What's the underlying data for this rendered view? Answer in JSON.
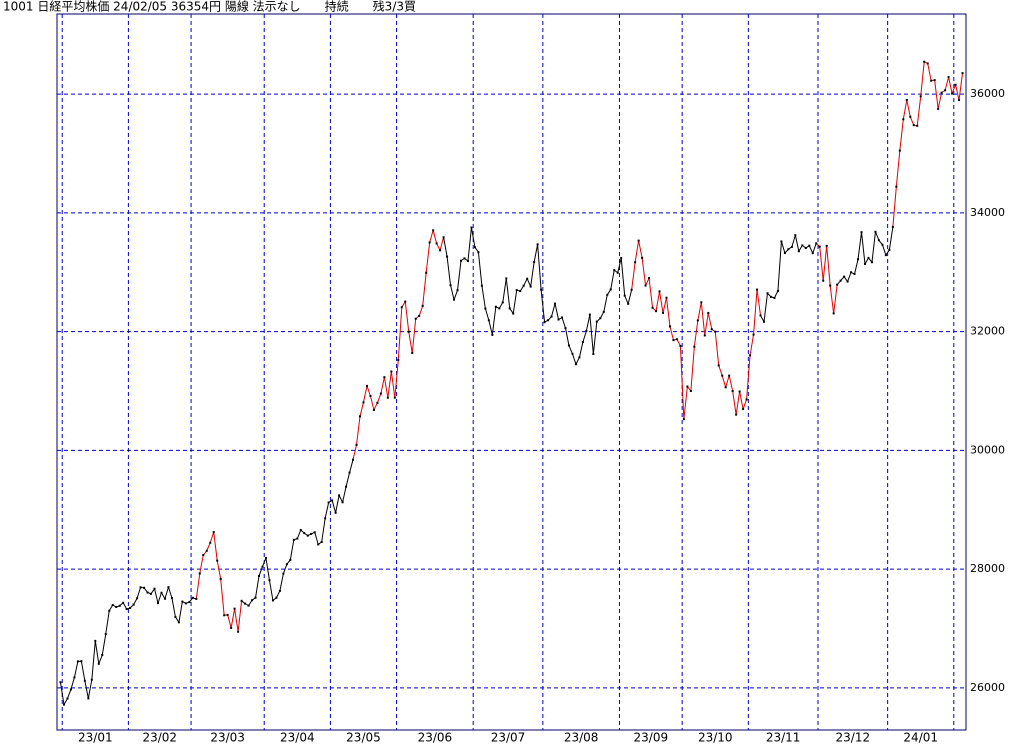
{
  "chart_data": {
    "type": "line",
    "title": "1001 日経平均株価 24/02/05 36354円 陽線 法示なし　　持続　　残3/3買",
    "values": [
      26094,
      25717,
      25820,
      25974,
      26175,
      26446,
      26449,
      26119,
      25822,
      26138,
      26791,
      26405,
      26553,
      26906,
      27299,
      27395,
      27362,
      27382,
      27433,
      27327,
      27346,
      27402,
      27509,
      27693,
      27685,
      27606,
      27584,
      27670,
      27427,
      27602,
      27501,
      27696,
      27513,
      27194,
      27104,
      27453,
      27423,
      27445,
      27516,
      27498,
      27927,
      28237,
      28309,
      28444,
      28623,
      28143,
      27832,
      27222,
      27229,
      27010,
      27334,
      26945,
      27466,
      27419,
      27385,
      27476,
      27518,
      27883,
      28041,
      28188,
      27813,
      27472,
      27518,
      27633,
      27923,
      28082,
      28156,
      28493,
      28514,
      28658,
      28606,
      28564,
      28593,
      28620,
      28416,
      28457,
      28856,
      29123,
      29157,
      28949,
      29242,
      29126,
      29388,
      29626,
      29843,
      30093,
      30573,
      30808,
      31086,
      30916,
      30681,
      30801,
      30957,
      31233,
      30887,
      31328,
      30888,
      31524,
      32411,
      32506,
      31998,
      31641,
      32217,
      32265,
      32434,
      32992,
      33502,
      33706,
      33485,
      33370,
      33589,
      33264,
      32781,
      32538,
      32698,
      33194,
      33234,
      33189,
      33753,
      33422,
      33338,
      32773,
      32388,
      32190,
      31945,
      32419,
      32391,
      32493,
      32896,
      32391,
      32304,
      32700,
      32682,
      32774,
      32891,
      32759,
      33172,
      33470,
      32707,
      32159,
      32192,
      32254,
      32473,
      32204,
      32238,
      32059,
      31766,
      31626,
      31451,
      31566,
      31825,
      32010,
      32287,
      31624,
      32169,
      32226,
      32333,
      32620,
      32711,
      33036,
      32992,
      33241,
      32606,
      32468,
      32706,
      33168,
      33533,
      33242,
      32776,
      32902,
      32402,
      32345,
      32678,
      32316,
      32571,
      32088,
      31857,
      31872,
      31759,
      30526,
      31075,
      31000,
      31746,
      32189,
      32494,
      31936,
      32315,
      32040,
      31999,
      31430,
      31259,
      31062,
      31259,
      30999,
      30602,
      30992,
      30696,
      30858,
      31601,
      31950,
      32708,
      32272,
      32166,
      32646,
      32585,
      32568,
      32686,
      33519,
      33324,
      33388,
      33426,
      33625,
      33354,
      33452,
      33408,
      33447,
      33321,
      33487,
      33431,
      32858,
      33445,
      32776,
      32307,
      32791,
      32858,
      32926,
      32843,
      33000,
      32970,
      33219,
      33675,
      33140,
      33242,
      33169,
      33681,
      33539,
      33464,
      33288,
      33377,
      33763,
      34441,
      35049,
      35577,
      35901,
      35619,
      35477,
      35467,
      35963,
      36546,
      36517,
      36227,
      36236,
      35751,
      36026,
      36065,
      36287,
      36011,
      36158,
      35900,
      36354
    ],
    "colors": [
      "#000000",
      "#000000",
      "#000000",
      "#000000",
      "#000000",
      "#000000",
      "#000000",
      "#000000",
      "#000000",
      "#000000",
      "#000000",
      "#000000",
      "#000000",
      "#000000",
      "#000000",
      "#000000",
      "#000000",
      "#000000",
      "#000000",
      "#000000",
      "#000000",
      "#000000",
      "#000000",
      "#000000",
      "#000000",
      "#000000",
      "#000000",
      "#000000",
      "#000000",
      "#000000",
      "#000000",
      "#000000",
      "#000000",
      "#000000",
      "#000000",
      "#000000",
      "#000000",
      "#000000",
      "#000000",
      "#000000",
      "#e00000",
      "#e00000",
      "#e00000",
      "#e00000",
      "#e00000",
      "#e00000",
      "#e00000",
      "#e00000",
      "#e00000",
      "#e00000",
      "#e00000",
      "#e00000",
      "#e00000",
      "#000000",
      "#000000",
      "#000000",
      "#000000",
      "#000000",
      "#000000",
      "#000000",
      "#000000",
      "#000000",
      "#000000",
      "#000000",
      "#000000",
      "#000000",
      "#000000",
      "#000000",
      "#000000",
      "#000000",
      "#000000",
      "#000000",
      "#000000",
      "#000000",
      "#000000",
      "#000000",
      "#000000",
      "#000000",
      "#000000",
      "#000000",
      "#000000",
      "#000000",
      "#000000",
      "#000000",
      "#000000",
      "#e00000",
      "#e00000",
      "#e00000",
      "#e00000",
      "#e00000",
      "#e00000",
      "#e00000",
      "#e00000",
      "#e00000",
      "#e00000",
      "#e00000",
      "#e00000",
      "#e00000",
      "#e00000",
      "#e00000",
      "#e00000",
      "#e00000",
      "#e00000",
      "#e00000",
      "#e00000",
      "#e00000",
      "#e00000",
      "#e00000",
      "#e00000",
      "#e00000",
      "#e00000",
      "#000000",
      "#000000",
      "#000000",
      "#000000",
      "#000000",
      "#000000",
      "#000000",
      "#000000",
      "#000000",
      "#000000",
      "#000000",
      "#000000",
      "#000000",
      "#000000",
      "#000000",
      "#000000",
      "#000000",
      "#000000",
      "#000000",
      "#000000",
      "#000000",
      "#000000",
      "#000000",
      "#000000",
      "#000000",
      "#000000",
      "#000000",
      "#000000",
      "#000000",
      "#000000",
      "#000000",
      "#000000",
      "#000000",
      "#000000",
      "#000000",
      "#000000",
      "#000000",
      "#000000",
      "#000000",
      "#000000",
      "#000000",
      "#000000",
      "#000000",
      "#000000",
      "#000000",
      "#000000",
      "#000000",
      "#000000",
      "#000000",
      "#000000",
      "#000000",
      "#000000",
      "#000000",
      "#000000",
      "#e00000",
      "#e00000",
      "#e00000",
      "#e00000",
      "#e00000",
      "#e00000",
      "#e00000",
      "#e00000",
      "#e00000",
      "#e00000",
      "#e00000",
      "#e00000",
      "#e00000",
      "#e00000",
      "#e00000",
      "#e00000",
      "#e00000",
      "#e00000",
      "#e00000",
      "#e00000",
      "#e00000",
      "#e00000",
      "#e00000",
      "#e00000",
      "#e00000",
      "#e00000",
      "#e00000",
      "#e00000",
      "#e00000",
      "#e00000",
      "#e00000",
      "#e00000",
      "#e00000",
      "#e00000",
      "#e00000",
      "#e00000",
      "#e00000",
      "#000000",
      "#000000",
      "#000000",
      "#000000",
      "#000000",
      "#000000",
      "#000000",
      "#000000",
      "#000000",
      "#000000",
      "#000000",
      "#000000",
      "#000000",
      "#000000",
      "#000000",
      "#000000",
      "#e00000",
      "#e00000",
      "#e00000",
      "#e00000",
      "#e00000",
      "#e00000",
      "#000000",
      "#000000",
      "#000000",
      "#000000",
      "#000000",
      "#000000",
      "#000000",
      "#000000",
      "#000000",
      "#000000",
      "#000000",
      "#000000",
      "#000000",
      "#000000",
      "#000000",
      "#000000",
      "#e00000",
      "#e00000",
      "#e00000",
      "#e00000",
      "#e00000",
      "#e00000",
      "#e00000",
      "#e00000",
      "#e00000",
      "#e00000",
      "#e00000",
      "#e00000",
      "#e00000",
      "#e00000",
      "#e00000",
      "#e00000",
      "#e00000",
      "#e00000",
      "#e00000",
      "#e00000"
    ],
    "xlim": [
      -1,
      260
    ],
    "xticks": [
      {
        "value": 1,
        "label": "23/01"
      },
      {
        "value": 20,
        "label": "23/02"
      },
      {
        "value": 38,
        "label": "23/03"
      },
      {
        "value": 59,
        "label": "23/04"
      },
      {
        "value": 78,
        "label": "23/05"
      },
      {
        "value": 97,
        "label": "23/06"
      },
      {
        "value": 119,
        "label": "23/07"
      },
      {
        "value": 139,
        "label": "23/08"
      },
      {
        "value": 161,
        "label": "23/09"
      },
      {
        "value": 179,
        "label": "23/10"
      },
      {
        "value": 198,
        "label": "23/11"
      },
      {
        "value": 218,
        "label": "23/12"
      },
      {
        "value": 238,
        "label": "24/01"
      },
      {
        "value": 257,
        "label": null
      }
    ],
    "ylim": [
      25290,
      37350
    ],
    "yticks": [
      26000,
      28000,
      30000,
      32000,
      34000,
      36000
    ],
    "grid": true,
    "grid_color": "#0000cc",
    "frame_color": "#000066"
  }
}
